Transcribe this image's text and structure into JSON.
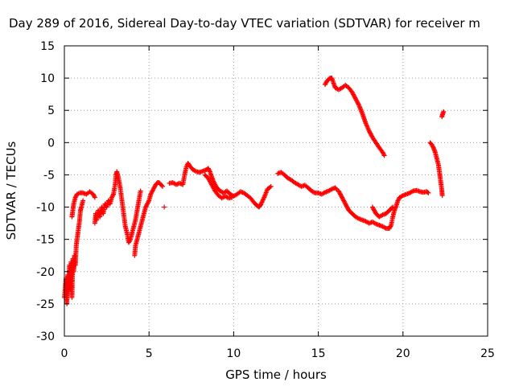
{
  "chart_data": {
    "type": "scatter",
    "title": "Day 289 of 2016, Sidereal Day-to-day VTEC variation (SDTVAR) for receiver m",
    "xlabel": "GPS time / hours",
    "ylabel": "SDTVAR / TECUs",
    "xlim": [
      0,
      25
    ],
    "ylim": [
      -30,
      15
    ],
    "x_ticks": [
      "0",
      "5",
      "10",
      "15",
      "20",
      "25"
    ],
    "y_ticks": [
      "-30",
      "-25",
      "-20",
      "-15",
      "-10",
      "-5",
      "0",
      "5",
      "10",
      "15"
    ],
    "grid": true,
    "marker": "plus",
    "series_color": "#ff0000",
    "series": [
      {
        "segments": [
          [
            [
              0.0,
              -24
            ],
            [
              0.05,
              -22.5
            ],
            [
              0.1,
              -21
            ],
            [
              0.15,
              -25
            ],
            [
              0.2,
              -20.5
            ],
            [
              0.25,
              -23
            ],
            [
              0.3,
              -19
            ],
            [
              0.35,
              -22
            ],
            [
              0.4,
              -18.5
            ],
            [
              0.45,
              -24
            ],
            [
              0.5,
              -18
            ],
            [
              0.55,
              -20
            ],
            [
              0.6,
              -17.5
            ],
            [
              0.65,
              -19
            ],
            [
              0.7,
              -16
            ],
            [
              0.75,
              -15
            ],
            [
              0.8,
              -14
            ],
            [
              0.85,
              -13
            ],
            [
              0.9,
              -12
            ],
            [
              0.95,
              -10.5
            ],
            [
              1.0,
              -10
            ],
            [
              1.1,
              -9
            ]
          ],
          [
            [
              0.45,
              -11.5
            ],
            [
              0.5,
              -10.5
            ],
            [
              0.55,
              -9.5
            ],
            [
              0.65,
              -8.5
            ],
            [
              0.75,
              -8
            ],
            [
              0.9,
              -7.8
            ],
            [
              1.1,
              -7.8
            ],
            [
              1.3,
              -8
            ],
            [
              1.5,
              -7.6
            ],
            [
              1.7,
              -8
            ],
            [
              1.8,
              -8.5
            ]
          ],
          [
            [
              1.8,
              -12.5
            ],
            [
              1.85,
              -11
            ],
            [
              1.9,
              -12
            ],
            [
              2.0,
              -10.5
            ],
            [
              2.1,
              -11.5
            ],
            [
              2.2,
              -10
            ],
            [
              2.3,
              -11
            ],
            [
              2.4,
              -9.5
            ],
            [
              2.5,
              -10
            ],
            [
              2.6,
              -9
            ],
            [
              2.7,
              -9.5
            ],
            [
              2.8,
              -8.5
            ],
            [
              2.9,
              -8
            ]
          ],
          [
            [
              2.9,
              -8
            ],
            [
              3.0,
              -6.5
            ],
            [
              3.05,
              -5
            ],
            [
              3.1,
              -4.5
            ],
            [
              3.2,
              -5.5
            ],
            [
              3.3,
              -7
            ],
            [
              3.4,
              -9
            ],
            [
              3.5,
              -11
            ],
            [
              3.6,
              -13
            ],
            [
              3.7,
              -14
            ],
            [
              3.8,
              -15.5
            ],
            [
              3.9,
              -15
            ],
            [
              4.0,
              -14
            ],
            [
              4.1,
              -13
            ],
            [
              4.2,
              -12
            ],
            [
              4.3,
              -10.5
            ],
            [
              4.4,
              -9
            ],
            [
              4.5,
              -7.5
            ]
          ],
          [
            [
              4.15,
              -17.5
            ],
            [
              4.2,
              -16
            ],
            [
              4.3,
              -15
            ],
            [
              4.4,
              -14
            ],
            [
              4.5,
              -13
            ],
            [
              4.6,
              -12
            ],
            [
              4.7,
              -11
            ],
            [
              4.8,
              -10
            ],
            [
              4.9,
              -9.5
            ],
            [
              5.0,
              -9
            ],
            [
              5.1,
              -8
            ],
            [
              5.2,
              -7.5
            ],
            [
              5.3,
              -7
            ],
            [
              5.4,
              -6.5
            ],
            [
              5.5,
              -6.2
            ],
            [
              5.6,
              -6.2
            ],
            [
              5.7,
              -6.5
            ],
            [
              5.8,
              -6.8
            ]
          ],
          [
            [
              5.9,
              -10
            ]
          ],
          [
            [
              6.2,
              -6.3
            ],
            [
              6.4,
              -6.2
            ],
            [
              6.6,
              -6.5
            ],
            [
              6.8,
              -6.3
            ],
            [
              7.0,
              -6.5
            ],
            [
              7.1,
              -5
            ],
            [
              7.2,
              -3.8
            ],
            [
              7.3,
              -3.2
            ],
            [
              7.4,
              -3.6
            ],
            [
              7.6,
              -4.2
            ],
            [
              7.8,
              -4.5
            ],
            [
              8.0,
              -4.6
            ],
            [
              8.2,
              -4.4
            ],
            [
              8.4,
              -4.2
            ],
            [
              8.5,
              -4
            ],
            [
              8.6,
              -4.5
            ],
            [
              8.7,
              -5.3
            ],
            [
              8.8,
              -6
            ],
            [
              8.9,
              -6.5
            ],
            [
              9.0,
              -7
            ],
            [
              9.2,
              -7.5
            ],
            [
              9.4,
              -7.8
            ],
            [
              9.6,
              -7.5
            ],
            [
              9.8,
              -8
            ],
            [
              10.0,
              -8.3
            ],
            [
              10.2,
              -8
            ],
            [
              10.4,
              -7.6
            ],
            [
              10.6,
              -7.8
            ],
            [
              10.8,
              -8.2
            ],
            [
              11.0,
              -8.6
            ],
            [
              11.2,
              -9.3
            ],
            [
              11.4,
              -9.8
            ],
            [
              11.5,
              -10
            ],
            [
              11.6,
              -9.6
            ],
            [
              11.8,
              -8.5
            ],
            [
              12.0,
              -7.2
            ],
            [
              12.2,
              -6.8
            ]
          ],
          [
            [
              8.3,
              -5
            ],
            [
              8.5,
              -5.5
            ],
            [
              8.7,
              -6.5
            ],
            [
              8.9,
              -7.5
            ],
            [
              9.1,
              -8.2
            ],
            [
              9.3,
              -8.6
            ],
            [
              9.5,
              -8.3
            ],
            [
              9.7,
              -8.6
            ],
            [
              9.9,
              -8.5
            ]
          ],
          [
            [
              12.6,
              -4.8
            ],
            [
              12.8,
              -4.6
            ],
            [
              13.0,
              -5
            ],
            [
              13.2,
              -5.5
            ],
            [
              13.4,
              -5.8
            ],
            [
              13.6,
              -6.2
            ],
            [
              13.8,
              -6.5
            ],
            [
              14.0,
              -6.8
            ],
            [
              14.2,
              -6.6
            ],
            [
              14.4,
              -7
            ],
            [
              14.6,
              -7.5
            ],
            [
              14.8,
              -7.8
            ],
            [
              15.0,
              -7.8
            ],
            [
              15.2,
              -8
            ],
            [
              15.4,
              -7.7
            ],
            [
              15.6,
              -7.5
            ],
            [
              15.8,
              -7.2
            ],
            [
              16.0,
              -7
            ],
            [
              16.1,
              -7.3
            ]
          ],
          [
            [
              16.2,
              -7.5
            ],
            [
              16.4,
              -8.5
            ],
            [
              16.6,
              -9.5
            ],
            [
              16.8,
              -10.5
            ],
            [
              17.0,
              -11
            ],
            [
              17.2,
              -11.5
            ],
            [
              17.4,
              -11.8
            ],
            [
              17.6,
              -12
            ],
            [
              17.8,
              -12.2
            ],
            [
              18.0,
              -12.5
            ],
            [
              18.2,
              -12.3
            ],
            [
              18.4,
              -12.6
            ],
            [
              18.6,
              -12.8
            ],
            [
              18.8,
              -13
            ],
            [
              19.0,
              -13.3
            ],
            [
              19.2,
              -13.3
            ],
            [
              19.3,
              -12.8
            ],
            [
              19.4,
              -11.5
            ],
            [
              19.5,
              -10.5
            ],
            [
              19.6,
              -9.8
            ],
            [
              19.7,
              -9
            ],
            [
              19.8,
              -8.5
            ],
            [
              20.0,
              -8.2
            ],
            [
              20.2,
              -8
            ],
            [
              20.4,
              -7.8
            ],
            [
              20.6,
              -7.5
            ],
            [
              20.8,
              -7.4
            ],
            [
              21.0,
              -7.6
            ],
            [
              21.2,
              -7.7
            ],
            [
              21.4,
              -7.6
            ],
            [
              21.5,
              -7.8
            ]
          ],
          [
            [
              18.2,
              -10
            ],
            [
              18.4,
              -11
            ],
            [
              18.6,
              -11.5
            ],
            [
              18.8,
              -11.2
            ],
            [
              19.0,
              -11
            ],
            [
              19.2,
              -10.5
            ],
            [
              19.4,
              -10
            ]
          ],
          [
            [
              15.4,
              9
            ],
            [
              15.5,
              9.5
            ],
            [
              15.6,
              9.8
            ],
            [
              15.7,
              10
            ],
            [
              15.8,
              10
            ],
            [
              15.9,
              9.2
            ],
            [
              16.0,
              8.5
            ],
            [
              16.2,
              8.2
            ],
            [
              16.4,
              8.5
            ],
            [
              16.6,
              8.9
            ],
            [
              16.8,
              8.5
            ],
            [
              17.0,
              7.8
            ],
            [
              17.2,
              6.8
            ],
            [
              17.4,
              5.8
            ],
            [
              17.6,
              4.5
            ],
            [
              17.8,
              3
            ],
            [
              18.0,
              1.8
            ],
            [
              18.2,
              0.8
            ],
            [
              18.4,
              0
            ],
            [
              18.6,
              -0.8
            ],
            [
              18.8,
              -1.5
            ],
            [
              18.9,
              -2
            ]
          ],
          [
            [
              21.6,
              0
            ],
            [
              21.7,
              -0.3
            ],
            [
              21.8,
              -0.8
            ],
            [
              21.9,
              -1.5
            ],
            [
              22.0,
              -2.5
            ],
            [
              22.1,
              -3.5
            ],
            [
              22.15,
              -4.5
            ],
            [
              22.2,
              -5.5
            ],
            [
              22.25,
              -6.5
            ],
            [
              22.3,
              -7.5
            ],
            [
              22.32,
              -8.2
            ]
          ],
          [
            [
              22.3,
              4
            ],
            [
              22.35,
              4.5
            ],
            [
              22.4,
              4.8
            ]
          ]
        ]
      }
    ]
  }
}
